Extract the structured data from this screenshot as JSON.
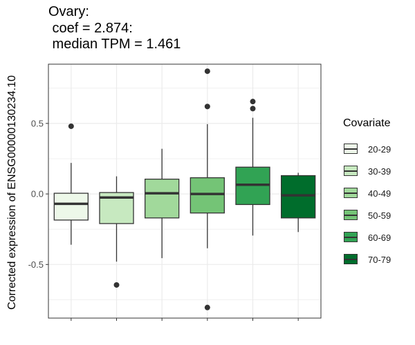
{
  "chart_data": {
    "type": "box",
    "title_lines": [
      "Ovary:",
      " coef = 2.874:",
      " median TPM = 1.461"
    ],
    "xlabel": "",
    "ylabel": "Corrected expression of ENSG00000130234.10",
    "ylim": [
      -0.88,
      0.92
    ],
    "yticks": [
      -0.5,
      0.0,
      0.5
    ],
    "ytick_labels": [
      "-0.5",
      "0.0",
      "0.5"
    ],
    "grid": true,
    "legend": {
      "title": "Covariate",
      "position": "right"
    },
    "categories": [
      "20-29",
      "30-39",
      "40-49",
      "50-59",
      "60-69",
      "70-79"
    ],
    "colors": [
      "#edf8e9",
      "#c7e9c0",
      "#a1d99b",
      "#74c476",
      "#31a354",
      "#006d2c"
    ],
    "boxes": [
      {
        "name": "20-29",
        "whisker_low": -0.36,
        "q1": -0.185,
        "median": -0.07,
        "q3": 0.005,
        "whisker_high": 0.22,
        "outliers": [
          0.48
        ]
      },
      {
        "name": "30-39",
        "whisker_low": -0.48,
        "q1": -0.21,
        "median": -0.025,
        "q3": 0.01,
        "whisker_high": 0.125,
        "outliers": [
          -0.645
        ]
      },
      {
        "name": "40-49",
        "whisker_low": -0.455,
        "q1": -0.17,
        "median": 0.005,
        "q3": 0.105,
        "whisker_high": 0.32,
        "outliers": []
      },
      {
        "name": "50-59",
        "whisker_low": -0.385,
        "q1": -0.135,
        "median": 0.0,
        "q3": 0.115,
        "whisker_high": 0.495,
        "outliers": [
          0.62,
          0.87,
          -0.805
        ]
      },
      {
        "name": "60-69",
        "whisker_low": -0.295,
        "q1": -0.075,
        "median": 0.065,
        "q3": 0.19,
        "whisker_high": 0.54,
        "outliers": [
          0.605,
          0.655
        ]
      },
      {
        "name": "70-79",
        "whisker_low": -0.27,
        "q1": -0.17,
        "median": -0.01,
        "q3": 0.13,
        "whisker_high": 0.15,
        "outliers": []
      }
    ]
  }
}
